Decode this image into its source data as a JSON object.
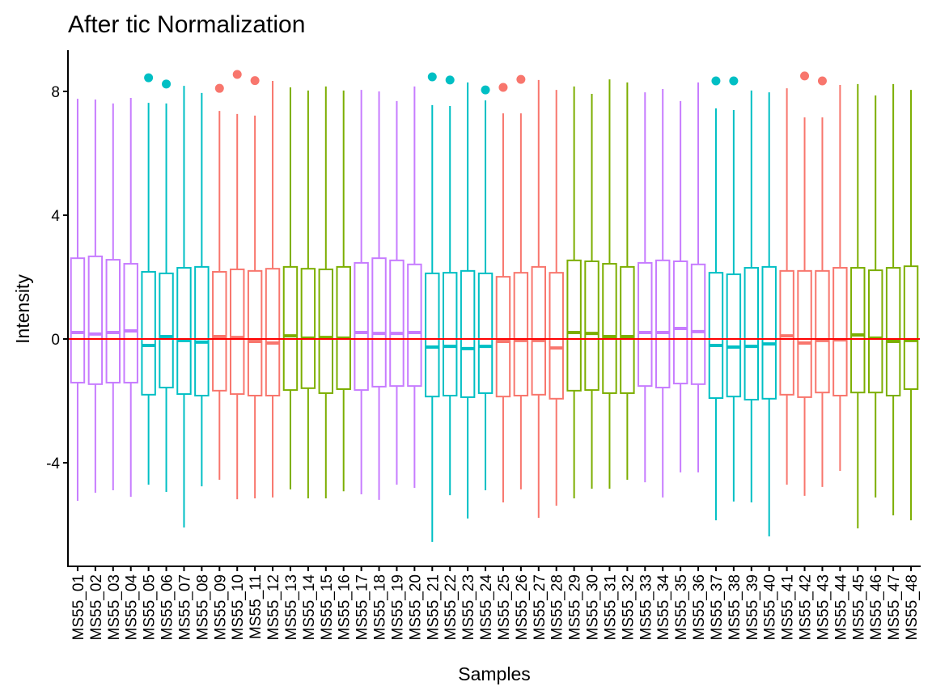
{
  "chart_data": {
    "type": "boxplot",
    "title": "After tic Normalization",
    "xlabel": "Samples",
    "ylabel": "Intensity",
    "ylim": [
      -7.4,
      9.3
    ],
    "yticks": [
      -4,
      0,
      4,
      8
    ],
    "ytick_labels": [
      "-4",
      "0",
      "4",
      "8"
    ],
    "reference_line": {
      "y": 0,
      "color": "#FF0000"
    },
    "group_colors": {
      "purple": "#C77CFF",
      "cyan": "#00BFC4",
      "red": "#F8766D",
      "green": "#7CAE00"
    },
    "grid": false,
    "legend": "none",
    "categories": [
      "MS55_01",
      "MS55_02",
      "MS55_03",
      "MS55_04",
      "MS55_05",
      "MS55_06",
      "MS55_07",
      "MS55_08",
      "MS55_09",
      "MS55_10",
      "MS55_11",
      "MS55_12",
      "MS55_13",
      "MS55_14",
      "MS55_15",
      "MS55_16",
      "MS55_17",
      "MS55_18",
      "MS55_19",
      "MS55_20",
      "MS55_21",
      "MS55_22",
      "MS55_23",
      "MS55_24",
      "MS55_25",
      "MS55_26",
      "MS55_27",
      "MS55_28",
      "MS55_29",
      "MS55_30",
      "MS55_31",
      "MS55_32",
      "MS55_33",
      "MS55_34",
      "MS55_35",
      "MS55_36",
      "MS55_37",
      "MS55_38",
      "MS55_39",
      "MS55_40",
      "MS55_41",
      "MS55_42",
      "MS55_43",
      "MS55_44",
      "MS55_45",
      "MS55_46",
      "MS55_47",
      "MS55_48"
    ],
    "boxes": [
      {
        "sample": "MS55_01",
        "group": "purple",
        "whisker_high": 7.76,
        "q3": 2.61,
        "median": 0.21,
        "q1": -1.41,
        "whisker_low": -5.23,
        "outliers": []
      },
      {
        "sample": "MS55_02",
        "group": "purple",
        "whisker_high": 7.74,
        "q3": 2.67,
        "median": 0.16,
        "q1": -1.46,
        "whisker_low": -4.97,
        "outliers": []
      },
      {
        "sample": "MS55_03",
        "group": "purple",
        "whisker_high": 7.61,
        "q3": 2.56,
        "median": 0.21,
        "q1": -1.41,
        "whisker_low": -4.89,
        "outliers": []
      },
      {
        "sample": "MS55_04",
        "group": "purple",
        "whisker_high": 7.79,
        "q3": 2.43,
        "median": 0.26,
        "q1": -1.41,
        "whisker_low": -5.1,
        "outliers": []
      },
      {
        "sample": "MS55_05",
        "group": "cyan",
        "whisker_high": 7.63,
        "q3": 2.17,
        "median": -0.21,
        "q1": -1.8,
        "whisker_low": -4.71,
        "outliers": [
          8.44
        ]
      },
      {
        "sample": "MS55_06",
        "group": "cyan",
        "whisker_high": 7.61,
        "q3": 2.12,
        "median": 0.08,
        "q1": -1.57,
        "whisker_low": -4.94,
        "outliers": [
          8.24
        ]
      },
      {
        "sample": "MS55_07",
        "group": "cyan",
        "whisker_high": 8.18,
        "q3": 2.3,
        "median": -0.05,
        "q1": -1.78,
        "whisker_low": -6.09,
        "outliers": []
      },
      {
        "sample": "MS55_08",
        "group": "cyan",
        "whisker_high": 7.95,
        "q3": 2.33,
        "median": -0.1,
        "q1": -1.83,
        "whisker_low": -4.76,
        "outliers": []
      },
      {
        "sample": "MS55_09",
        "group": "red",
        "whisker_high": 7.37,
        "q3": 2.17,
        "median": 0.08,
        "q1": -1.67,
        "whisker_low": -4.55,
        "outliers": [
          8.1
        ]
      },
      {
        "sample": "MS55_10",
        "group": "red",
        "whisker_high": 7.27,
        "q3": 2.25,
        "median": 0.05,
        "q1": -1.78,
        "whisker_low": -5.18,
        "outliers": [
          8.55
        ]
      },
      {
        "sample": "MS55_11",
        "group": "red",
        "whisker_high": 7.22,
        "q3": 2.2,
        "median": -0.08,
        "q1": -1.83,
        "whisker_low": -5.15,
        "outliers": [
          8.35
        ]
      },
      {
        "sample": "MS55_12",
        "group": "red",
        "whisker_high": 8.34,
        "q3": 2.27,
        "median": -0.13,
        "q1": -1.83,
        "whisker_low": -5.12,
        "outliers": []
      },
      {
        "sample": "MS55_13",
        "group": "green",
        "whisker_high": 8.13,
        "q3": 2.33,
        "median": 0.1,
        "q1": -1.65,
        "whisker_low": -4.86,
        "outliers": []
      },
      {
        "sample": "MS55_14",
        "group": "green",
        "whisker_high": 8.03,
        "q3": 2.27,
        "median": 0.03,
        "q1": -1.59,
        "whisker_low": -5.15,
        "outliers": []
      },
      {
        "sample": "MS55_15",
        "group": "green",
        "whisker_high": 8.16,
        "q3": 2.25,
        "median": 0.05,
        "q1": -1.75,
        "whisker_low": -5.15,
        "outliers": []
      },
      {
        "sample": "MS55_16",
        "group": "green",
        "whisker_high": 8.03,
        "q3": 2.33,
        "median": 0.03,
        "q1": -1.62,
        "whisker_low": -4.92,
        "outliers": []
      },
      {
        "sample": "MS55_17",
        "group": "purple",
        "whisker_high": 8.05,
        "q3": 2.46,
        "median": 0.21,
        "q1": -1.65,
        "whisker_low": -5.02,
        "outliers": []
      },
      {
        "sample": "MS55_18",
        "group": "purple",
        "whisker_high": 8.0,
        "q3": 2.61,
        "median": 0.18,
        "q1": -1.54,
        "whisker_low": -5.2,
        "outliers": []
      },
      {
        "sample": "MS55_19",
        "group": "purple",
        "whisker_high": 7.69,
        "q3": 2.54,
        "median": 0.18,
        "q1": -1.52,
        "whisker_low": -4.71,
        "outliers": []
      },
      {
        "sample": "MS55_20",
        "group": "purple",
        "whisker_high": 8.16,
        "q3": 2.41,
        "median": 0.21,
        "q1": -1.52,
        "whisker_low": -4.81,
        "outliers": []
      },
      {
        "sample": "MS55_21",
        "group": "cyan",
        "whisker_high": 7.56,
        "q3": 2.12,
        "median": -0.26,
        "q1": -1.86,
        "whisker_low": -6.56,
        "outliers": [
          8.47
        ]
      },
      {
        "sample": "MS55_22",
        "group": "cyan",
        "whisker_high": 7.53,
        "q3": 2.14,
        "median": -0.24,
        "q1": -1.83,
        "whisker_low": -5.05,
        "outliers": [
          8.37
        ]
      },
      {
        "sample": "MS55_23",
        "group": "cyan",
        "whisker_high": 8.29,
        "q3": 2.2,
        "median": -0.31,
        "q1": -1.88,
        "whisker_low": -5.8,
        "outliers": []
      },
      {
        "sample": "MS55_24",
        "group": "cyan",
        "whisker_high": 7.71,
        "q3": 2.12,
        "median": -0.24,
        "q1": -1.75,
        "whisker_low": -4.89,
        "outliers": [
          8.05
        ]
      },
      {
        "sample": "MS55_25",
        "group": "red",
        "whisker_high": 7.29,
        "q3": 2.01,
        "median": -0.08,
        "q1": -1.86,
        "whisker_low": -5.28,
        "outliers": [
          8.13
        ]
      },
      {
        "sample": "MS55_26",
        "group": "red",
        "whisker_high": 7.29,
        "q3": 2.14,
        "median": -0.05,
        "q1": -1.83,
        "whisker_low": -4.86,
        "outliers": [
          8.39
        ]
      },
      {
        "sample": "MS55_27",
        "group": "red",
        "whisker_high": 8.37,
        "q3": 2.33,
        "median": -0.05,
        "q1": -1.8,
        "whisker_low": -5.78,
        "outliers": []
      },
      {
        "sample": "MS55_28",
        "group": "red",
        "whisker_high": 8.05,
        "q3": 2.14,
        "median": -0.29,
        "q1": -1.93,
        "whisker_low": -5.39,
        "outliers": []
      },
      {
        "sample": "MS55_29",
        "group": "green",
        "whisker_high": 8.16,
        "q3": 2.54,
        "median": 0.21,
        "q1": -1.67,
        "whisker_low": -5.15,
        "outliers": []
      },
      {
        "sample": "MS55_30",
        "group": "green",
        "whisker_high": 7.92,
        "q3": 2.51,
        "median": 0.18,
        "q1": -1.65,
        "whisker_low": -4.84,
        "outliers": []
      },
      {
        "sample": "MS55_31",
        "group": "green",
        "whisker_high": 8.39,
        "q3": 2.43,
        "median": 0.08,
        "q1": -1.75,
        "whisker_low": -4.84,
        "outliers": []
      },
      {
        "sample": "MS55_32",
        "group": "green",
        "whisker_high": 8.29,
        "q3": 2.33,
        "median": 0.08,
        "q1": -1.75,
        "whisker_low": -4.55,
        "outliers": []
      },
      {
        "sample": "MS55_33",
        "group": "purple",
        "whisker_high": 7.97,
        "q3": 2.46,
        "median": 0.21,
        "q1": -1.52,
        "whisker_low": -4.63,
        "outliers": []
      },
      {
        "sample": "MS55_34",
        "group": "purple",
        "whisker_high": 8.08,
        "q3": 2.54,
        "median": 0.21,
        "q1": -1.57,
        "whisker_low": -5.12,
        "outliers": []
      },
      {
        "sample": "MS55_35",
        "group": "purple",
        "whisker_high": 7.69,
        "q3": 2.51,
        "median": 0.34,
        "q1": -1.44,
        "whisker_low": -4.31,
        "outliers": []
      },
      {
        "sample": "MS55_36",
        "group": "purple",
        "whisker_high": 8.29,
        "q3": 2.41,
        "median": 0.24,
        "q1": -1.46,
        "whisker_low": -4.31,
        "outliers": []
      },
      {
        "sample": "MS55_37",
        "group": "cyan",
        "whisker_high": 7.45,
        "q3": 2.14,
        "median": -0.21,
        "q1": -1.91,
        "whisker_low": -5.86,
        "outliers": [
          8.34
        ]
      },
      {
        "sample": "MS55_38",
        "group": "cyan",
        "whisker_high": 7.4,
        "q3": 2.09,
        "median": -0.26,
        "q1": -1.86,
        "whisker_low": -5.25,
        "outliers": [
          8.34
        ]
      },
      {
        "sample": "MS55_39",
        "group": "cyan",
        "whisker_high": 8.03,
        "q3": 2.3,
        "median": -0.24,
        "q1": -1.96,
        "whisker_low": -5.28,
        "outliers": []
      },
      {
        "sample": "MS55_40",
        "group": "cyan",
        "whisker_high": 7.97,
        "q3": 2.33,
        "median": -0.16,
        "q1": -1.93,
        "whisker_low": -6.38,
        "outliers": []
      },
      {
        "sample": "MS55_41",
        "group": "red",
        "whisker_high": 8.1,
        "q3": 2.2,
        "median": 0.1,
        "q1": -1.8,
        "whisker_low": -4.71,
        "outliers": []
      },
      {
        "sample": "MS55_42",
        "group": "red",
        "whisker_high": 7.16,
        "q3": 2.2,
        "median": -0.13,
        "q1": -1.88,
        "whisker_low": -5.07,
        "outliers": [
          8.5
        ]
      },
      {
        "sample": "MS55_43",
        "group": "red",
        "whisker_high": 7.16,
        "q3": 2.2,
        "median": -0.05,
        "q1": -1.73,
        "whisker_low": -4.78,
        "outliers": [
          8.34
        ]
      },
      {
        "sample": "MS55_44",
        "group": "red",
        "whisker_high": 8.21,
        "q3": 2.3,
        "median": -0.03,
        "q1": -1.83,
        "whisker_low": -4.26,
        "outliers": []
      },
      {
        "sample": "MS55_45",
        "group": "green",
        "whisker_high": 8.24,
        "q3": 2.3,
        "median": 0.13,
        "q1": -1.73,
        "whisker_low": -6.12,
        "outliers": []
      },
      {
        "sample": "MS55_46",
        "group": "green",
        "whisker_high": 7.87,
        "q3": 2.22,
        "median": 0.03,
        "q1": -1.73,
        "whisker_low": -5.12,
        "outliers": []
      },
      {
        "sample": "MS55_47",
        "group": "green",
        "whisker_high": 8.24,
        "q3": 2.3,
        "median": -0.08,
        "q1": -1.83,
        "whisker_low": -5.7,
        "outliers": []
      },
      {
        "sample": "MS55_48",
        "group": "green",
        "whisker_high": 8.05,
        "q3": 2.35,
        "median": -0.05,
        "q1": -1.62,
        "whisker_low": -5.86,
        "outliers": []
      }
    ]
  }
}
